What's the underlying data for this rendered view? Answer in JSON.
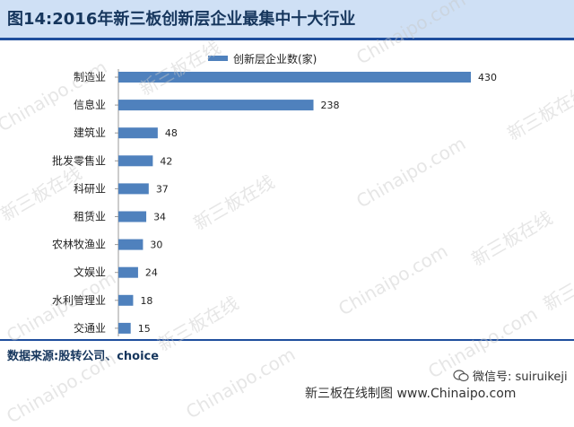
{
  "header": {
    "title": "图14:2016年新三板创新层企业最集中十大行业"
  },
  "footer": {
    "source": "数据来源:股转公司、choice",
    "wechat": "微信号: suiruikeji",
    "caption": "新三板在线制图",
    "site": "www.Chinaipo.com"
  },
  "watermark": {
    "text_cn": "新三板在线",
    "text_en": "Chinaipo.com"
  },
  "colors": {
    "bar": "#4f81bd",
    "title_bg": "#cfe0f5",
    "title_text": "#16365d",
    "rule": "#1f4e9d"
  },
  "chart_data": {
    "type": "bar",
    "orientation": "horizontal",
    "categories": [
      "制造业",
      "信息业",
      "建筑业",
      "批发零售业",
      "科研业",
      "租赁业",
      "农林牧渔业",
      "文娱业",
      "水利管理业",
      "交通业"
    ],
    "series": [
      {
        "name": "创新层企业数(家)",
        "values": [
          430,
          238,
          48,
          42,
          37,
          34,
          30,
          24,
          18,
          15
        ]
      }
    ],
    "xlim": [
      0,
      430
    ],
    "legend": "top-center",
    "grid": false
  }
}
